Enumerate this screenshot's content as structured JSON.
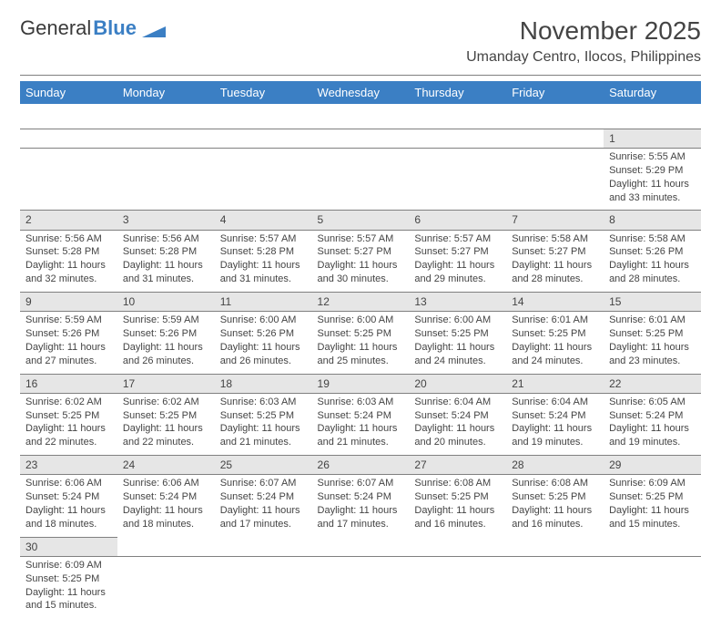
{
  "brand": {
    "name1": "General",
    "name2": "Blue",
    "flag_color": "#3b7fc4"
  },
  "title": "November 2025",
  "subtitle": "Umanday Centro, Ilocos, Philippines",
  "colors": {
    "header_bg": "#3b7fc4",
    "header_fg": "#ffffff",
    "daynum_bg": "#e6e6e6",
    "rule": "#808080",
    "text": "#444444"
  },
  "weekdays": [
    "Sunday",
    "Monday",
    "Tuesday",
    "Wednesday",
    "Thursday",
    "Friday",
    "Saturday"
  ],
  "weeks": [
    [
      null,
      null,
      null,
      null,
      null,
      null,
      {
        "n": "1",
        "sr": "Sunrise: 5:55 AM",
        "ss": "Sunset: 5:29 PM",
        "d1": "Daylight: 11 hours",
        "d2": "and 33 minutes."
      }
    ],
    [
      {
        "n": "2",
        "sr": "Sunrise: 5:56 AM",
        "ss": "Sunset: 5:28 PM",
        "d1": "Daylight: 11 hours",
        "d2": "and 32 minutes."
      },
      {
        "n": "3",
        "sr": "Sunrise: 5:56 AM",
        "ss": "Sunset: 5:28 PM",
        "d1": "Daylight: 11 hours",
        "d2": "and 31 minutes."
      },
      {
        "n": "4",
        "sr": "Sunrise: 5:57 AM",
        "ss": "Sunset: 5:28 PM",
        "d1": "Daylight: 11 hours",
        "d2": "and 31 minutes."
      },
      {
        "n": "5",
        "sr": "Sunrise: 5:57 AM",
        "ss": "Sunset: 5:27 PM",
        "d1": "Daylight: 11 hours",
        "d2": "and 30 minutes."
      },
      {
        "n": "6",
        "sr": "Sunrise: 5:57 AM",
        "ss": "Sunset: 5:27 PM",
        "d1": "Daylight: 11 hours",
        "d2": "and 29 minutes."
      },
      {
        "n": "7",
        "sr": "Sunrise: 5:58 AM",
        "ss": "Sunset: 5:27 PM",
        "d1": "Daylight: 11 hours",
        "d2": "and 28 minutes."
      },
      {
        "n": "8",
        "sr": "Sunrise: 5:58 AM",
        "ss": "Sunset: 5:26 PM",
        "d1": "Daylight: 11 hours",
        "d2": "and 28 minutes."
      }
    ],
    [
      {
        "n": "9",
        "sr": "Sunrise: 5:59 AM",
        "ss": "Sunset: 5:26 PM",
        "d1": "Daylight: 11 hours",
        "d2": "and 27 minutes."
      },
      {
        "n": "10",
        "sr": "Sunrise: 5:59 AM",
        "ss": "Sunset: 5:26 PM",
        "d1": "Daylight: 11 hours",
        "d2": "and 26 minutes."
      },
      {
        "n": "11",
        "sr": "Sunrise: 6:00 AM",
        "ss": "Sunset: 5:26 PM",
        "d1": "Daylight: 11 hours",
        "d2": "and 26 minutes."
      },
      {
        "n": "12",
        "sr": "Sunrise: 6:00 AM",
        "ss": "Sunset: 5:25 PM",
        "d1": "Daylight: 11 hours",
        "d2": "and 25 minutes."
      },
      {
        "n": "13",
        "sr": "Sunrise: 6:00 AM",
        "ss": "Sunset: 5:25 PM",
        "d1": "Daylight: 11 hours",
        "d2": "and 24 minutes."
      },
      {
        "n": "14",
        "sr": "Sunrise: 6:01 AM",
        "ss": "Sunset: 5:25 PM",
        "d1": "Daylight: 11 hours",
        "d2": "and 24 minutes."
      },
      {
        "n": "15",
        "sr": "Sunrise: 6:01 AM",
        "ss": "Sunset: 5:25 PM",
        "d1": "Daylight: 11 hours",
        "d2": "and 23 minutes."
      }
    ],
    [
      {
        "n": "16",
        "sr": "Sunrise: 6:02 AM",
        "ss": "Sunset: 5:25 PM",
        "d1": "Daylight: 11 hours",
        "d2": "and 22 minutes."
      },
      {
        "n": "17",
        "sr": "Sunrise: 6:02 AM",
        "ss": "Sunset: 5:25 PM",
        "d1": "Daylight: 11 hours",
        "d2": "and 22 minutes."
      },
      {
        "n": "18",
        "sr": "Sunrise: 6:03 AM",
        "ss": "Sunset: 5:25 PM",
        "d1": "Daylight: 11 hours",
        "d2": "and 21 minutes."
      },
      {
        "n": "19",
        "sr": "Sunrise: 6:03 AM",
        "ss": "Sunset: 5:24 PM",
        "d1": "Daylight: 11 hours",
        "d2": "and 21 minutes."
      },
      {
        "n": "20",
        "sr": "Sunrise: 6:04 AM",
        "ss": "Sunset: 5:24 PM",
        "d1": "Daylight: 11 hours",
        "d2": "and 20 minutes."
      },
      {
        "n": "21",
        "sr": "Sunrise: 6:04 AM",
        "ss": "Sunset: 5:24 PM",
        "d1": "Daylight: 11 hours",
        "d2": "and 19 minutes."
      },
      {
        "n": "22",
        "sr": "Sunrise: 6:05 AM",
        "ss": "Sunset: 5:24 PM",
        "d1": "Daylight: 11 hours",
        "d2": "and 19 minutes."
      }
    ],
    [
      {
        "n": "23",
        "sr": "Sunrise: 6:06 AM",
        "ss": "Sunset: 5:24 PM",
        "d1": "Daylight: 11 hours",
        "d2": "and 18 minutes."
      },
      {
        "n": "24",
        "sr": "Sunrise: 6:06 AM",
        "ss": "Sunset: 5:24 PM",
        "d1": "Daylight: 11 hours",
        "d2": "and 18 minutes."
      },
      {
        "n": "25",
        "sr": "Sunrise: 6:07 AM",
        "ss": "Sunset: 5:24 PM",
        "d1": "Daylight: 11 hours",
        "d2": "and 17 minutes."
      },
      {
        "n": "26",
        "sr": "Sunrise: 6:07 AM",
        "ss": "Sunset: 5:24 PM",
        "d1": "Daylight: 11 hours",
        "d2": "and 17 minutes."
      },
      {
        "n": "27",
        "sr": "Sunrise: 6:08 AM",
        "ss": "Sunset: 5:25 PM",
        "d1": "Daylight: 11 hours",
        "d2": "and 16 minutes."
      },
      {
        "n": "28",
        "sr": "Sunrise: 6:08 AM",
        "ss": "Sunset: 5:25 PM",
        "d1": "Daylight: 11 hours",
        "d2": "and 16 minutes."
      },
      {
        "n": "29",
        "sr": "Sunrise: 6:09 AM",
        "ss": "Sunset: 5:25 PM",
        "d1": "Daylight: 11 hours",
        "d2": "and 15 minutes."
      }
    ],
    [
      {
        "n": "30",
        "sr": "Sunrise: 6:09 AM",
        "ss": "Sunset: 5:25 PM",
        "d1": "Daylight: 11 hours",
        "d2": "and 15 minutes."
      },
      null,
      null,
      null,
      null,
      null,
      null
    ]
  ]
}
